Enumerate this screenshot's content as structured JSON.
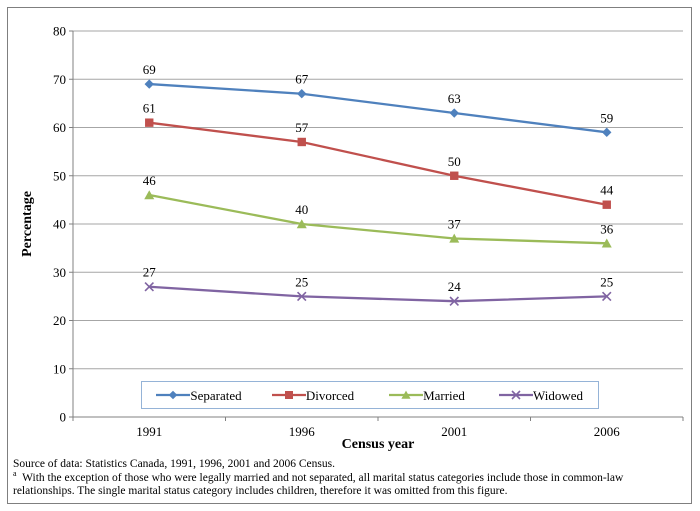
{
  "chart_data": {
    "type": "line",
    "categories": [
      "1991",
      "1996",
      "2001",
      "2006"
    ],
    "series": [
      {
        "name": "Separated",
        "marker": "diamond",
        "color": "#4f81bd",
        "values": [
          69,
          67,
          63,
          59
        ]
      },
      {
        "name": "Divorced",
        "marker": "square",
        "color": "#c0504d",
        "values": [
          61,
          57,
          50,
          44
        ]
      },
      {
        "name": "Married",
        "marker": "triangle",
        "color": "#9bbb59",
        "values": [
          46,
          40,
          37,
          36
        ]
      },
      {
        "name": "Widowed",
        "marker": "x",
        "color": "#8064a2",
        "values": [
          27,
          25,
          24,
          25
        ]
      }
    ],
    "title": "",
    "xlabel": "Census year",
    "ylabel": "Percentage",
    "ylim": [
      0,
      80
    ],
    "ytick_step": 10,
    "grid": true,
    "data_labels": true,
    "legend_position": "bottom-inside"
  },
  "colors": {
    "gridline": "#a6a6a6",
    "axis": "#808080",
    "legend_border": "#95b3d7",
    "frame_border": "#7f7f7f",
    "label_text": "#000000"
  },
  "footnotes": {
    "source": "Source of data:  Statistics Canada, 1991, 1996, 2001 and 2006 Census.",
    "note_marker": "a",
    "note": "With the exception of those who were legally married and not separated, all marital status categories include those in common-law relationships. The single marital status category includes children, therefore it was omitted from this figure."
  }
}
